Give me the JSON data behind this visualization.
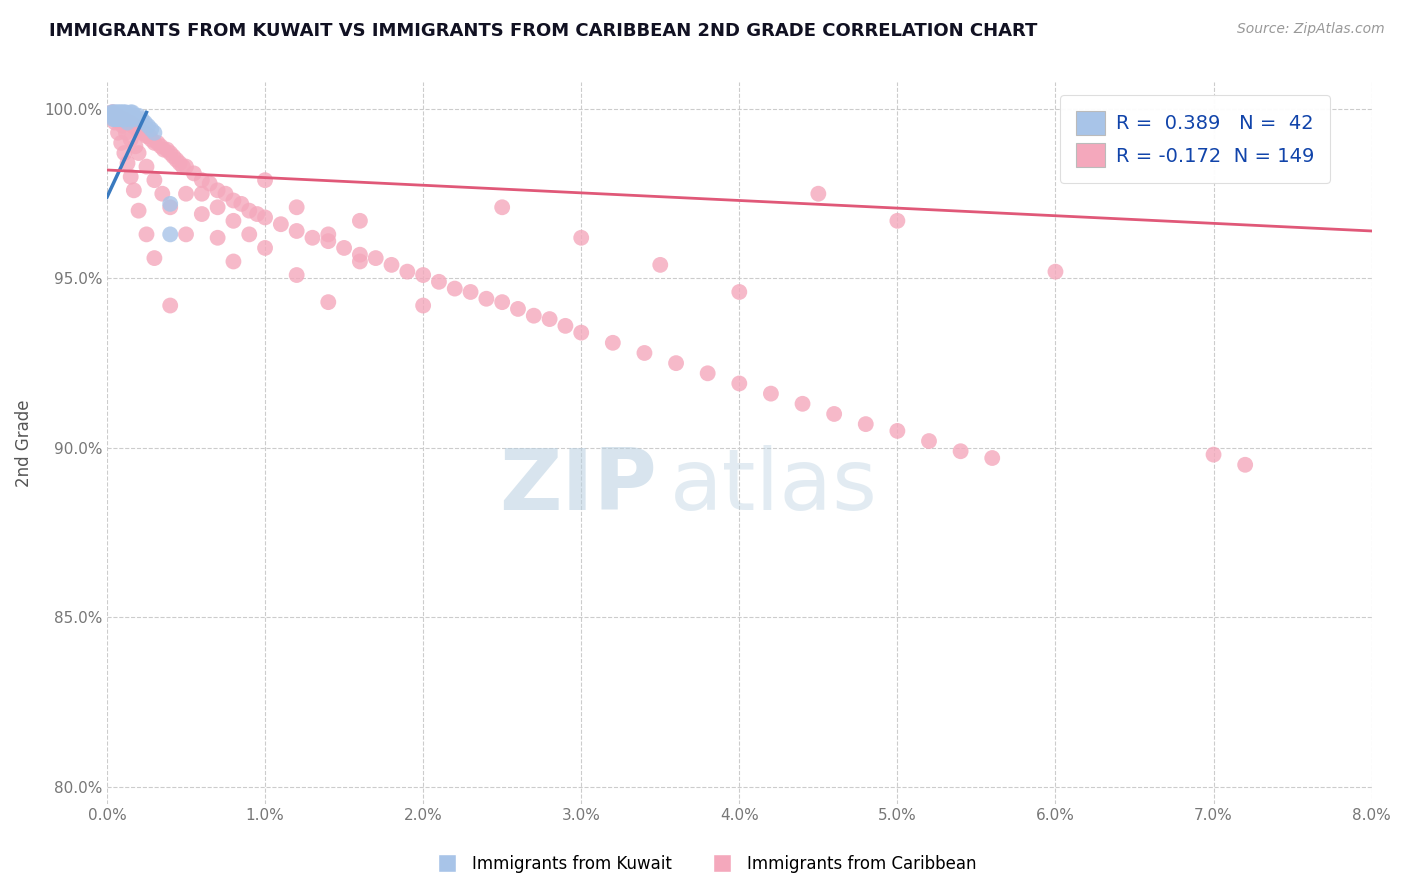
{
  "title": "IMMIGRANTS FROM KUWAIT VS IMMIGRANTS FROM CARIBBEAN 2ND GRADE CORRELATION CHART",
  "source": "Source: ZipAtlas.com",
  "ylabel": "2nd Grade",
  "xlim": [
    0.0,
    0.08
  ],
  "ylim": [
    0.795,
    1.008
  ],
  "xticks": [
    0.0,
    0.01,
    0.02,
    0.03,
    0.04,
    0.05,
    0.06,
    0.07,
    0.08
  ],
  "xticklabels": [
    "0.0%",
    "1.0%",
    "2.0%",
    "3.0%",
    "4.0%",
    "5.0%",
    "6.0%",
    "7.0%",
    "8.0%"
  ],
  "yticks": [
    0.8,
    0.85,
    0.9,
    0.95,
    1.0
  ],
  "yticklabels": [
    "80.0%",
    "85.0%",
    "90.0%",
    "95.0%",
    "100.0%"
  ],
  "kuwait_color": "#a8c4e8",
  "caribbean_color": "#f4a8bc",
  "kuwait_edge_color": "#a8c4e8",
  "caribbean_edge_color": "#f4a8bc",
  "kuwait_line_color": "#3a7abf",
  "caribbean_line_color": "#e05878",
  "R_kuwait": 0.389,
  "N_kuwait": 42,
  "R_caribbean": -0.172,
  "N_caribbean": 149,
  "legend_label_kuwait": "Immigrants from Kuwait",
  "legend_label_caribbean": "Immigrants from Caribbean",
  "background_color": "#ffffff",
  "grid_color": "#cccccc",
  "title_color": "#111122",
  "axis_label_color": "#555555",
  "tick_color": "#777777",
  "legend_text_color": "#1144aa",
  "kuwait_scatter_x": [
    0.0003,
    0.0003,
    0.0004,
    0.0004,
    0.0004,
    0.0005,
    0.0005,
    0.0005,
    0.0006,
    0.0006,
    0.0006,
    0.0007,
    0.0007,
    0.0007,
    0.0008,
    0.0008,
    0.0008,
    0.0009,
    0.0009,
    0.001,
    0.001,
    0.001,
    0.0011,
    0.0011,
    0.0012,
    0.0012,
    0.0013,
    0.0013,
    0.0014,
    0.0015,
    0.0015,
    0.0016,
    0.0017,
    0.0018,
    0.002,
    0.0022,
    0.0024,
    0.0026,
    0.0028,
    0.003,
    0.004,
    0.004
  ],
  "kuwait_scatter_y": [
    0.999,
    0.998,
    0.999,
    0.998,
    0.997,
    0.999,
    0.998,
    0.997,
    0.999,
    0.998,
    0.997,
    0.999,
    0.998,
    0.997,
    0.999,
    0.998,
    0.997,
    0.999,
    0.998,
    0.999,
    0.998,
    0.997,
    0.999,
    0.997,
    0.999,
    0.997,
    0.998,
    0.996,
    0.998,
    0.999,
    0.997,
    0.999,
    0.998,
    0.997,
    0.998,
    0.997,
    0.996,
    0.995,
    0.994,
    0.993,
    0.972,
    0.963
  ],
  "caribbean_scatter_x": [
    0.0003,
    0.0004,
    0.0005,
    0.0006,
    0.0007,
    0.0008,
    0.0009,
    0.001,
    0.0011,
    0.0012,
    0.0013,
    0.0014,
    0.0015,
    0.0016,
    0.0017,
    0.0018,
    0.0019,
    0.002,
    0.0021,
    0.0022,
    0.0023,
    0.0024,
    0.0025,
    0.0026,
    0.0027,
    0.0028,
    0.003,
    0.0032,
    0.0034,
    0.0036,
    0.0038,
    0.004,
    0.0042,
    0.0044,
    0.0046,
    0.0048,
    0.005,
    0.0055,
    0.006,
    0.0065,
    0.007,
    0.0075,
    0.008,
    0.0085,
    0.009,
    0.0095,
    0.01,
    0.011,
    0.012,
    0.013,
    0.014,
    0.015,
    0.016,
    0.017,
    0.018,
    0.019,
    0.02,
    0.021,
    0.022,
    0.023,
    0.024,
    0.025,
    0.026,
    0.027,
    0.028,
    0.029,
    0.03,
    0.032,
    0.034,
    0.036,
    0.038,
    0.04,
    0.042,
    0.044,
    0.046,
    0.048,
    0.05,
    0.052,
    0.054,
    0.056,
    0.0005,
    0.0008,
    0.001,
    0.0012,
    0.0015,
    0.0018,
    0.002,
    0.0025,
    0.003,
    0.0035,
    0.004,
    0.005,
    0.006,
    0.007,
    0.008,
    0.009,
    0.01,
    0.012,
    0.014,
    0.016,
    0.0003,
    0.0005,
    0.0007,
    0.0009,
    0.0011,
    0.0013,
    0.0015,
    0.0017,
    0.002,
    0.0025,
    0.003,
    0.004,
    0.005,
    0.006,
    0.007,
    0.008,
    0.01,
    0.012,
    0.014,
    0.016,
    0.02,
    0.025,
    0.03,
    0.035,
    0.04,
    0.045,
    0.05,
    0.06,
    0.07,
    0.072
  ],
  "caribbean_scatter_y": [
    0.999,
    0.999,
    0.998,
    0.998,
    0.998,
    0.997,
    0.997,
    0.997,
    0.997,
    0.996,
    0.996,
    0.996,
    0.996,
    0.995,
    0.995,
    0.995,
    0.994,
    0.994,
    0.994,
    0.993,
    0.993,
    0.993,
    0.992,
    0.992,
    0.992,
    0.991,
    0.99,
    0.99,
    0.989,
    0.988,
    0.988,
    0.987,
    0.986,
    0.985,
    0.984,
    0.983,
    0.983,
    0.981,
    0.979,
    0.978,
    0.976,
    0.975,
    0.973,
    0.972,
    0.97,
    0.969,
    0.968,
    0.966,
    0.964,
    0.962,
    0.961,
    0.959,
    0.957,
    0.956,
    0.954,
    0.952,
    0.951,
    0.949,
    0.947,
    0.946,
    0.944,
    0.943,
    0.941,
    0.939,
    0.938,
    0.936,
    0.934,
    0.931,
    0.928,
    0.925,
    0.922,
    0.919,
    0.916,
    0.913,
    0.91,
    0.907,
    0.905,
    0.902,
    0.899,
    0.897,
    0.998,
    0.996,
    0.995,
    0.993,
    0.991,
    0.989,
    0.987,
    0.983,
    0.979,
    0.975,
    0.971,
    0.963,
    0.975,
    0.971,
    0.967,
    0.963,
    0.959,
    0.951,
    0.943,
    0.967,
    0.998,
    0.996,
    0.993,
    0.99,
    0.987,
    0.984,
    0.98,
    0.976,
    0.97,
    0.963,
    0.956,
    0.942,
    0.975,
    0.969,
    0.962,
    0.955,
    0.979,
    0.971,
    0.963,
    0.955,
    0.942,
    0.971,
    0.962,
    0.954,
    0.946,
    0.975,
    0.967,
    0.952,
    0.898,
    0.895
  ],
  "kuwait_trend_x": [
    0.0,
    0.0025
  ],
  "kuwait_trend_y": [
    0.974,
    0.999
  ],
  "caribbean_trend_x": [
    0.0,
    0.08
  ],
  "caribbean_trend_y": [
    0.982,
    0.964
  ]
}
